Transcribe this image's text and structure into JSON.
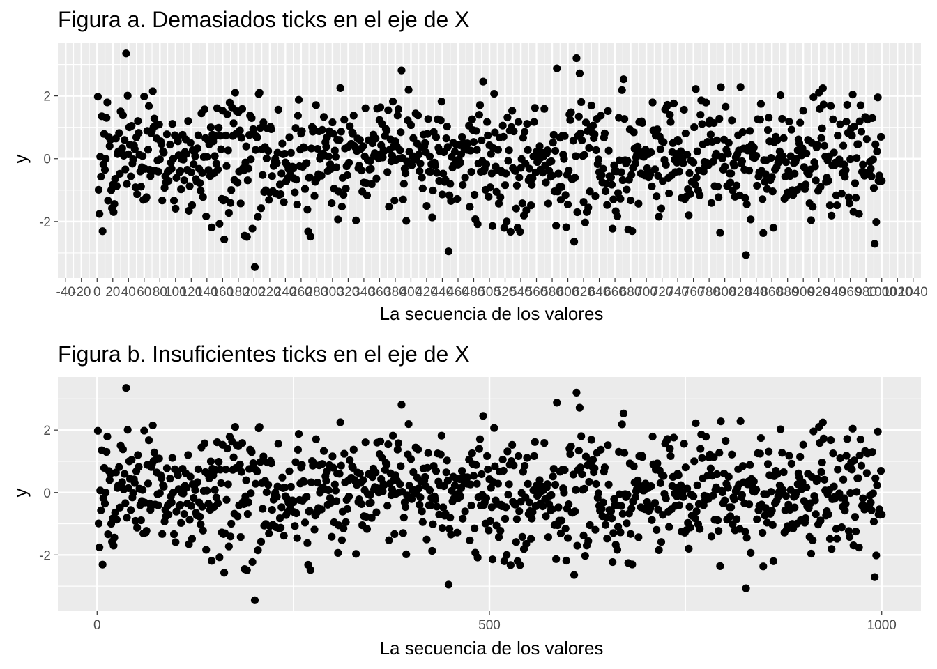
{
  "chart_data": [
    {
      "type": "scatter",
      "title": "Figura a. Demasiados ticks en el eje de X",
      "xlabel": "La secuencia de los valores",
      "ylabel": "y",
      "xlim": [
        -50,
        1050
      ],
      "ylim": [
        -3.8,
        3.7
      ],
      "x_ticks": [
        -40,
        -20,
        0,
        20,
        40,
        60,
        80,
        100,
        120,
        140,
        160,
        180,
        200,
        220,
        240,
        260,
        280,
        300,
        320,
        340,
        360,
        380,
        400,
        420,
        440,
        460,
        480,
        500,
        520,
        540,
        560,
        580,
        600,
        620,
        640,
        660,
        680,
        700,
        720,
        740,
        760,
        780,
        800,
        820,
        840,
        860,
        880,
        900,
        920,
        940,
        960,
        980,
        1000,
        1020,
        1040
      ],
      "x_tick_labels": [
        "-40",
        "-20",
        "0",
        "20",
        "40",
        "60",
        "80",
        "100",
        "120",
        "140",
        "160",
        "180",
        "200",
        "220",
        "240",
        "260",
        "280",
        "300",
        "320",
        "340",
        "360",
        "380",
        "400",
        "420",
        "440",
        "460",
        "480",
        "500",
        "520",
        "540",
        "560",
        "580",
        "600",
        "620",
        "640",
        "660",
        "680",
        "700",
        "720",
        "740",
        "760",
        "780",
        "800",
        "820",
        "840",
        "860",
        "880",
        "900",
        "920",
        "940",
        "960",
        "980",
        "1000",
        "1020",
        "1040"
      ],
      "y_ticks": [
        -2,
        0,
        2
      ],
      "y_tick_labels": [
        "-2",
        "0",
        "2"
      ],
      "grid": true,
      "n_points": 1000,
      "point_color": "#000000",
      "panel_color": "#ebebeb",
      "grid_color": "#ffffff"
    },
    {
      "type": "scatter",
      "title": "Figura b. Insuficientes ticks en el eje de X",
      "xlabel": "La secuencia de los valores",
      "ylabel": "y",
      "xlim": [
        -50,
        1050
      ],
      "ylim": [
        -3.8,
        3.7
      ],
      "x_ticks": [
        0,
        500,
        1000
      ],
      "x_tick_labels": [
        "0",
        "500",
        "1000"
      ],
      "y_ticks": [
        -2,
        0,
        2
      ],
      "y_tick_labels": [
        "-2",
        "0",
        "2"
      ],
      "grid": true,
      "n_points": 1000,
      "point_color": "#000000",
      "panel_color": "#ebebeb",
      "grid_color": "#ffffff"
    }
  ]
}
